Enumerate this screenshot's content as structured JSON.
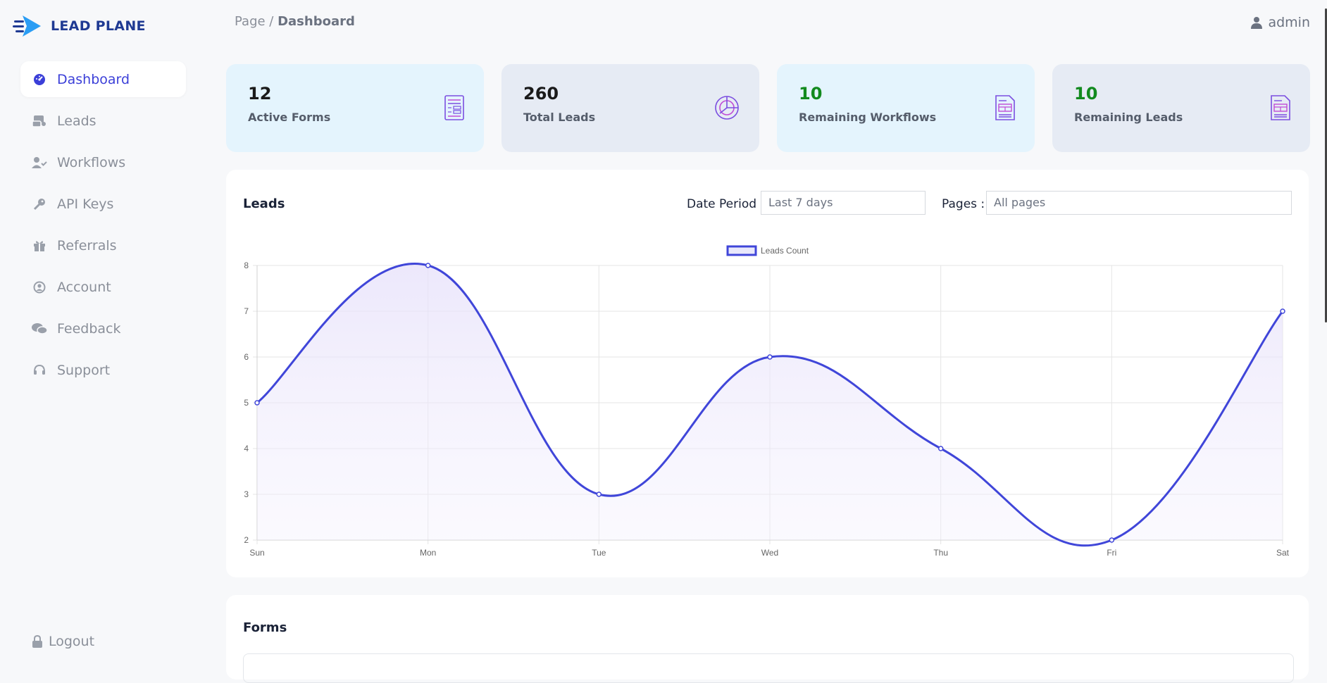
{
  "app": {
    "logo_text": "LEAD PLANE"
  },
  "sidebar": {
    "items": [
      {
        "label": "Dashboard",
        "icon": "gauge-icon",
        "active": true
      },
      {
        "label": "Leads",
        "icon": "leads-icon"
      },
      {
        "label": "Workflows",
        "icon": "user-check-icon"
      },
      {
        "label": "API Keys",
        "icon": "key-icon"
      },
      {
        "label": "Referrals",
        "icon": "gift-icon"
      },
      {
        "label": "Account",
        "icon": "user-circle-icon"
      },
      {
        "label": "Feedback",
        "icon": "comments-icon"
      },
      {
        "label": "Support",
        "icon": "headset-icon"
      }
    ],
    "logout": "Logout"
  },
  "header": {
    "breadcrumb_root": "Page",
    "breadcrumb_sep": " / ",
    "breadcrumb_current": "Dashboard",
    "user": "admin"
  },
  "stats": [
    {
      "value": "12",
      "label": "Active Forms",
      "icon": "form-icon"
    },
    {
      "value": "260",
      "label": "Total Leads",
      "icon": "pie-chart-icon"
    },
    {
      "value": "10",
      "label": "Remaining Workflows",
      "icon": "document-icon"
    },
    {
      "value": "10",
      "label": "Remaining Leads",
      "icon": "document-icon"
    }
  ],
  "leads_panel": {
    "title": "Leads",
    "date_period_label": "Date Period :",
    "date_period_value": "Last 7 days",
    "pages_label": "Pages :",
    "pages_value": "All pages"
  },
  "chart_data": {
    "type": "line",
    "categories": [
      "Sun",
      "Mon",
      "Tue",
      "Wed",
      "Thu",
      "Fri",
      "Sat"
    ],
    "series": [
      {
        "name": "Leads Count",
        "values": [
          5,
          8,
          3,
          6,
          4,
          2,
          7
        ]
      }
    ],
    "ylim": [
      2,
      8
    ],
    "yticks": [
      2,
      3,
      4,
      5,
      6,
      7,
      8
    ],
    "grid": true,
    "legend": "top-center",
    "color": "#4046d9"
  },
  "forms_panel": {
    "title": "Forms"
  }
}
